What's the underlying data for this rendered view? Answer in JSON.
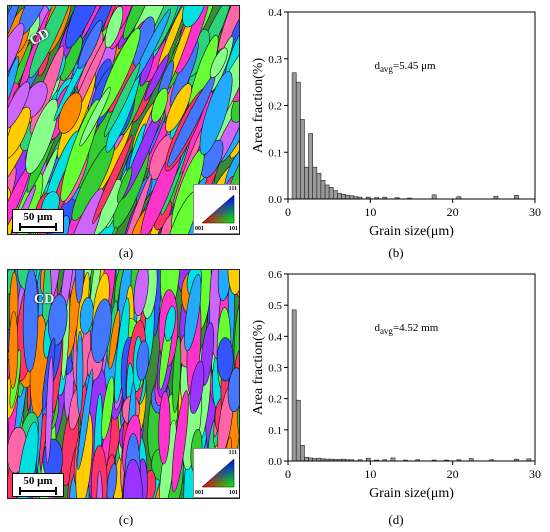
{
  "panels": {
    "a": {
      "label": "(a)",
      "scale_bar": "50 μm",
      "direction": "CD",
      "ipf": {
        "top": "111",
        "left": "001",
        "right": "101"
      }
    },
    "b": {
      "label": "(b)"
    },
    "c": {
      "label": "(c)",
      "scale_bar": "50 μm",
      "direction": "CD",
      "ipf": {
        "top": "111",
        "left": "001",
        "right": "101"
      }
    },
    "d": {
      "label": "(d)"
    }
  },
  "chart_data": [
    {
      "type": "bar",
      "panel": "b",
      "ylabel": "Area fraction(%)",
      "xlabel": "Grain size(μm)",
      "xlim": [
        0,
        30
      ],
      "ylim": [
        0,
        0.4
      ],
      "xticks": [
        0,
        10,
        20,
        30
      ],
      "yticks": [
        0.0,
        0.1,
        0.2,
        0.3,
        0.4
      ],
      "annotation": "d<sub>avg</sub>=5.45 μm",
      "annotation_parts": {
        "base": "d",
        "sub": "avg",
        "rest": "=5.45 μm"
      },
      "bin_width": 0.5,
      "x": [
        1.0,
        1.5,
        2.0,
        2.5,
        3.0,
        3.5,
        4.0,
        4.5,
        5.0,
        5.5,
        6.0,
        6.5,
        7.0,
        7.5,
        8.0,
        8.5,
        9.0,
        10.0,
        11.0,
        12.0,
        13.5,
        15.0,
        18.0,
        21.0,
        25.5,
        28.0
      ],
      "values": [
        0.27,
        0.25,
        0.17,
        0.068,
        0.14,
        0.068,
        0.055,
        0.04,
        0.03,
        0.025,
        0.018,
        0.012,
        0.01,
        0.008,
        0.007,
        0.005,
        0.004,
        0.004,
        0.003,
        0.004,
        0.003,
        0.002,
        0.009,
        0.005,
        0.006,
        0.008
      ],
      "color": "#9a9a9a"
    },
    {
      "type": "bar",
      "panel": "d",
      "ylabel": "Area fraction(%)",
      "xlabel": "Grain size(μm)",
      "xlim": [
        0,
        30
      ],
      "ylim": [
        0,
        0.6
      ],
      "xticks": [
        0,
        10,
        20,
        30
      ],
      "yticks": [
        0.0,
        0.1,
        0.2,
        0.3,
        0.4,
        0.5,
        0.6
      ],
      "annotation_parts": {
        "base": "d",
        "sub": "avg",
        "rest": "=4.52 mm"
      },
      "bin_width": 0.5,
      "x": [
        1.0,
        1.5,
        2.0,
        2.5,
        3.0,
        3.5,
        4.0,
        4.5,
        5.0,
        5.5,
        6.0,
        6.5,
        7.0,
        7.5,
        8.0,
        9.0,
        10.0,
        11.0,
        12.0,
        13.0,
        14.5,
        16.0,
        18.0,
        19.5,
        21.0,
        22.5,
        25.0,
        28.0,
        29.5
      ],
      "values": [
        0.485,
        0.195,
        0.05,
        0.012,
        0.01,
        0.008,
        0.009,
        0.007,
        0.006,
        0.006,
        0.005,
        0.005,
        0.006,
        0.004,
        0.004,
        0.004,
        0.009,
        0.003,
        0.004,
        0.01,
        0.003,
        0.004,
        0.003,
        0.003,
        0.004,
        0.008,
        0.004,
        0.006,
        0.007
      ],
      "color": "#9a9a9a"
    }
  ]
}
